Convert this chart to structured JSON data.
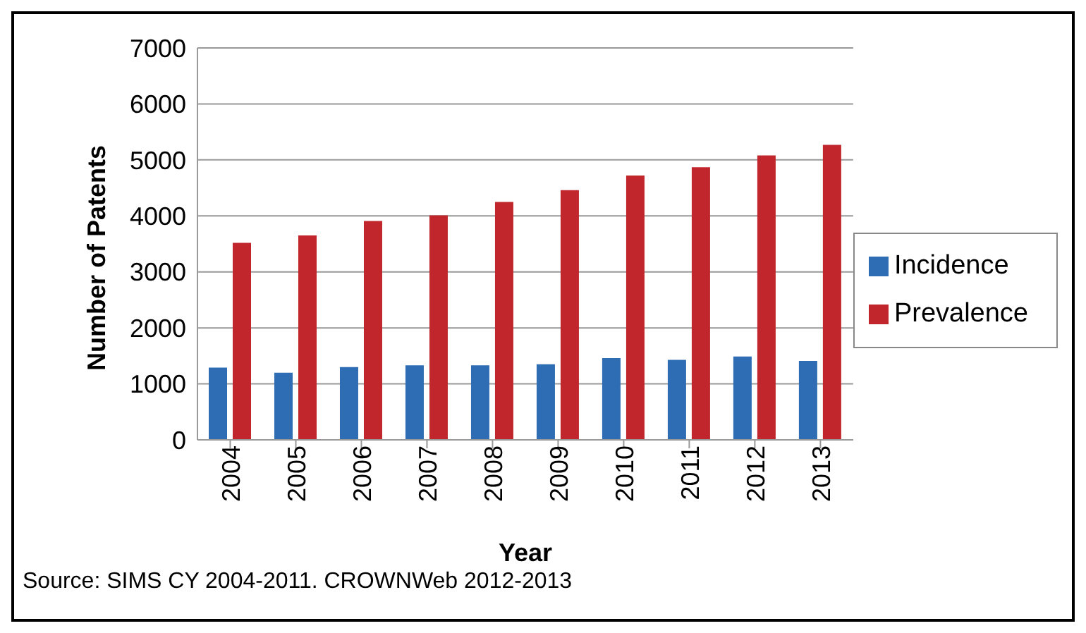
{
  "chart_data": {
    "type": "bar",
    "categories": [
      "2004",
      "2005",
      "2006",
      "2007",
      "2008",
      "2009",
      "2010",
      "2011",
      "2012",
      "2013"
    ],
    "series": [
      {
        "name": "Incidence",
        "color": "#2e6db4",
        "values": [
          1290,
          1200,
          1300,
          1330,
          1330,
          1350,
          1460,
          1430,
          1490,
          1410
        ]
      },
      {
        "name": "Prevalence",
        "color": "#c0262b",
        "values": [
          3520,
          3650,
          3910,
          4010,
          4250,
          4460,
          4720,
          4870,
          5080,
          5270
        ]
      }
    ],
    "xlabel": "Year",
    "ylabel": "Number of Patents",
    "ylim": [
      0,
      7000
    ],
    "yticks": [
      0,
      1000,
      2000,
      3000,
      4000,
      5000,
      6000,
      7000
    ],
    "grid": "y",
    "legend": "right",
    "annotations": [
      "Source: SIMS CY 2004-2011. CROWNWeb 2012-2013"
    ]
  }
}
